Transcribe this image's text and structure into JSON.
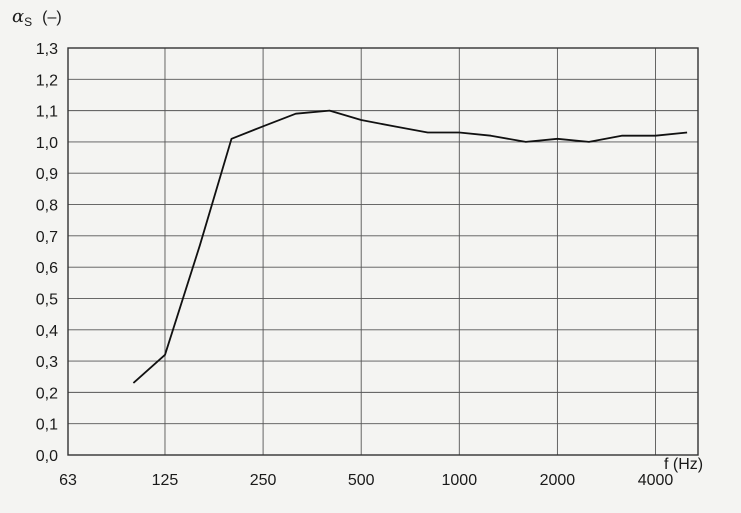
{
  "chart_data": {
    "type": "line",
    "ylabel_symbol": "α",
    "ylabel_sub": "S",
    "ylabel_unit": "(–)",
    "xlabel": "f (Hz)",
    "x_scale": "log2",
    "xlim": [
      63,
      5400
    ],
    "ylim": [
      0.0,
      1.3
    ],
    "x_ticks": [
      {
        "value": 63,
        "label": "63"
      },
      {
        "value": 125,
        "label": "125"
      },
      {
        "value": 250,
        "label": "250"
      },
      {
        "value": 500,
        "label": "500"
      },
      {
        "value": 1000,
        "label": "1000"
      },
      {
        "value": 2000,
        "label": "2000"
      },
      {
        "value": 4000,
        "label": "4000"
      }
    ],
    "y_ticks": [
      {
        "value": 0.0,
        "label": "0,0"
      },
      {
        "value": 0.1,
        "label": "0,1"
      },
      {
        "value": 0.2,
        "label": "0,2"
      },
      {
        "value": 0.3,
        "label": "0,3"
      },
      {
        "value": 0.4,
        "label": "0,4"
      },
      {
        "value": 0.5,
        "label": "0,5"
      },
      {
        "value": 0.6,
        "label": "0,6"
      },
      {
        "value": 0.7,
        "label": "0,7"
      },
      {
        "value": 0.8,
        "label": "0,8"
      },
      {
        "value": 0.9,
        "label": "0,9"
      },
      {
        "value": 1.0,
        "label": "1,0"
      },
      {
        "value": 1.1,
        "label": "1,1"
      },
      {
        "value": 1.2,
        "label": "1,2"
      },
      {
        "value": 1.3,
        "label": "1,3"
      }
    ],
    "grid": true,
    "series": [
      {
        "x": [
          100,
          125,
          160,
          200,
          250,
          315,
          400,
          500,
          630,
          800,
          1000,
          1250,
          1600,
          2000,
          2500,
          3150,
          4000,
          5000
        ],
        "y": [
          0.23,
          0.32,
          0.67,
          1.01,
          1.05,
          1.09,
          1.1,
          1.07,
          1.05,
          1.03,
          1.03,
          1.02,
          1.0,
          1.01,
          1.0,
          1.02,
          1.02,
          1.03
        ]
      }
    ],
    "colors": {
      "line": "#111111",
      "grid": "#555555",
      "background": "#f4f4f2"
    }
  }
}
